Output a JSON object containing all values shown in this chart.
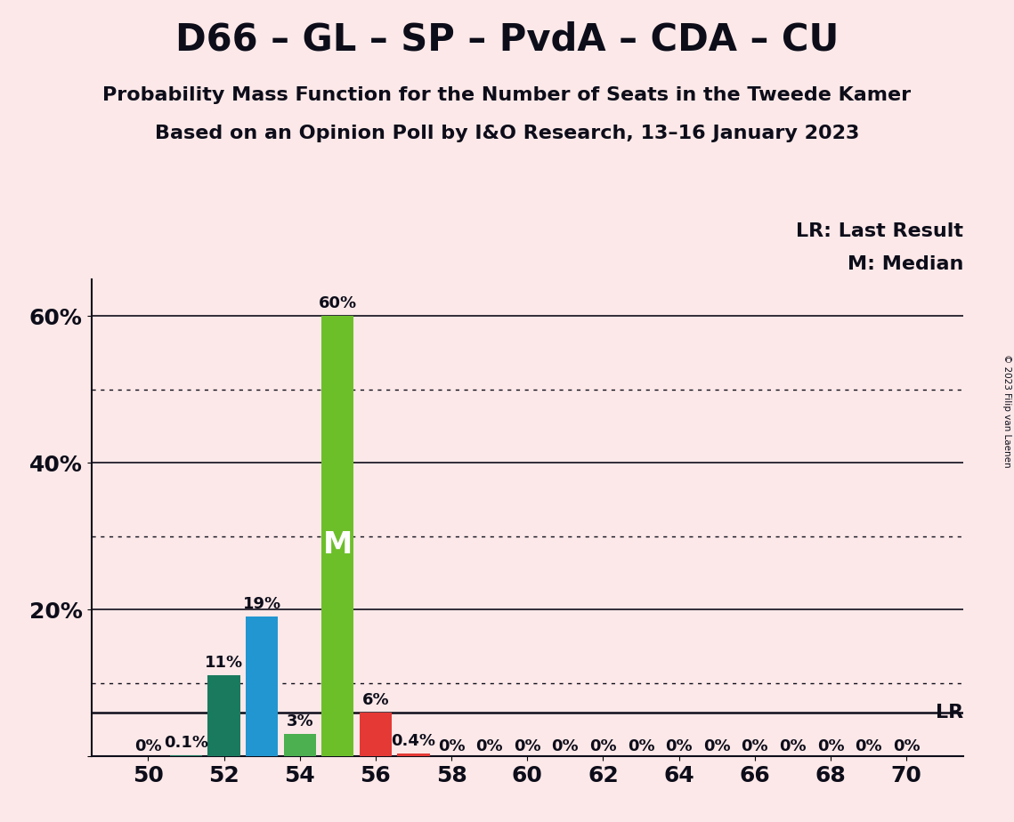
{
  "title": "D66 – GL – SP – PvdA – CDA – CU",
  "subtitle1": "Probability Mass Function for the Number of Seats in the Tweede Kamer",
  "subtitle2": "Based on an Opinion Poll by I&O Research, 13–16 January 2023",
  "copyright": "© 2023 Filip van Laenen",
  "background_color": "#fce8e8",
  "seats": [
    50,
    51,
    52,
    53,
    54,
    55,
    56,
    57,
    58,
    59,
    60,
    61,
    62,
    63,
    64,
    65,
    66,
    67,
    68,
    69,
    70
  ],
  "probabilities": [
    0.0,
    0.1,
    11.0,
    19.0,
    3.0,
    60.0,
    6.0,
    0.4,
    0.0,
    0.0,
    0.0,
    0.0,
    0.0,
    0.0,
    0.0,
    0.0,
    0.0,
    0.0,
    0.0,
    0.0,
    0.0
  ],
  "bar_colors": [
    "#fce8e8",
    "#1a7a5e",
    "#1a7a5e",
    "#2196d0",
    "#4caf50",
    "#6dbf2a",
    "#e53935",
    "#e53935",
    "#fce8e8",
    "#fce8e8",
    "#fce8e8",
    "#fce8e8",
    "#fce8e8",
    "#fce8e8",
    "#fce8e8",
    "#fce8e8",
    "#fce8e8",
    "#fce8e8",
    "#fce8e8",
    "#fce8e8",
    "#fce8e8"
  ],
  "bar_labels": [
    "0%",
    "0.1%",
    "11%",
    "19%",
    "3%",
    "60%",
    "6%",
    "0.4%",
    "0%",
    "0%",
    "0%",
    "0%",
    "0%",
    "0%",
    "0%",
    "0%",
    "0%",
    "0%",
    "0%",
    "0%",
    "0%"
  ],
  "median_seat": 55,
  "median_label": "M",
  "lr_value": 6.0,
  "legend_lr": "LR: Last Result",
  "legend_m": "M: Median",
  "ylim": [
    0,
    65
  ],
  "yticks": [
    0,
    20,
    40,
    60
  ],
  "xtick_positions": [
    50,
    52,
    54,
    56,
    58,
    60,
    62,
    64,
    66,
    68,
    70
  ],
  "title_fontsize": 30,
  "subtitle_fontsize": 16,
  "axis_fontsize": 18,
  "bar_label_fontsize": 13,
  "legend_fontsize": 16,
  "text_color": "#0d0d1a"
}
